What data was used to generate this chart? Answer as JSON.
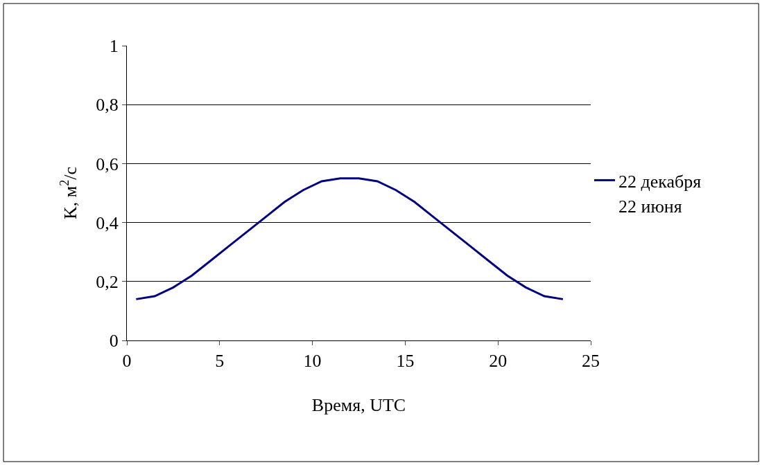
{
  "chart_data": {
    "type": "line",
    "xlabel": "Время, UTC",
    "ylabel": "K, м$^{2}$/с",
    "x": [
      0.5,
      1.5,
      2.5,
      3.5,
      4.5,
      5.5,
      6.5,
      7.5,
      8.5,
      9.5,
      10.5,
      11.5,
      12.5,
      13.5,
      14.5,
      15.5,
      16.5,
      17.5,
      18.5,
      19.5,
      20.5,
      21.5,
      22.5,
      23.5
    ],
    "series": [
      {
        "name": "22 декабря",
        "color": "#000080",
        "values": [
          0.14,
          0.15,
          0.18,
          0.22,
          0.27,
          0.32,
          0.37,
          0.42,
          0.47,
          0.51,
          0.54,
          0.55,
          0.55,
          0.54,
          0.51,
          0.47,
          0.42,
          0.37,
          0.32,
          0.27,
          0.22,
          0.18,
          0.15,
          0.14
        ]
      },
      {
        "name": "22 июня",
        "values": [
          null,
          null,
          null,
          null,
          null,
          null,
          null,
          null,
          null,
          null,
          null,
          null,
          null,
          null,
          null,
          null,
          null,
          null,
          null,
          null,
          null,
          null,
          null,
          null
        ]
      }
    ],
    "xlim": [
      0,
      25
    ],
    "xticks": [
      0,
      5,
      10,
      15,
      20,
      25
    ],
    "ylim": [
      0,
      1
    ],
    "yticks": [
      0,
      {
        "value": 0.2,
        "label": "0,2"
      },
      {
        "value": 0.4,
        "label": "0,4"
      },
      {
        "value": 0.6,
        "label": "0,6"
      },
      {
        "value": 0.8,
        "label": "0,8"
      },
      1
    ],
    "grid": "y",
    "legend": "right",
    "marker": "none",
    "line_style": "solid"
  }
}
